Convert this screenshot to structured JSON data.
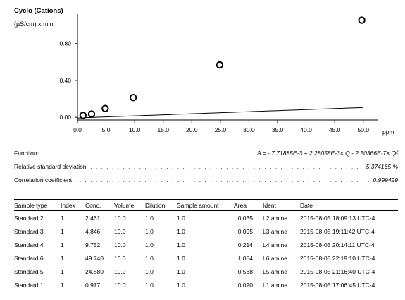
{
  "chart_data": {
    "type": "scatter",
    "title": "Cyclo (Cations)",
    "ylabel": "(µS/cm) x min",
    "xlabel": "ppm",
    "xlim": [
      0,
      52.5
    ],
    "ylim": [
      -0.03,
      1.12
    ],
    "xticks": [
      "0.0",
      "5.0",
      "10.0",
      "15.0",
      "20.0",
      "25.0",
      "30.0",
      "35.0",
      "40.0",
      "45.0",
      "50.0"
    ],
    "yticks": [
      "0.00",
      "0.40",
      "0.80"
    ],
    "points": [
      {
        "x": 0.977,
        "y": 0.02
      },
      {
        "x": 2.461,
        "y": 0.035
      },
      {
        "x": 4.846,
        "y": 0.095
      },
      {
        "x": 9.752,
        "y": 0.214
      },
      {
        "x": 24.88,
        "y": 0.568
      },
      {
        "x": 49.74,
        "y": 1.054
      }
    ],
    "fit": {
      "intercept": -0.00771885,
      "linear": 0.00228058,
      "quadratic": -2.50366e-07
    }
  },
  "info": {
    "function_label": "Function:",
    "function_value": "A = - 7.71885E-3 + 2.28058E-3× Q - 2.50366E-7× Q²",
    "rsd_label": "Relative standard deviation",
    "rsd_value": "5.374165 %",
    "corr_label": "Correlation coefficient",
    "corr_value": "0.999429"
  },
  "table": {
    "headers": {
      "sample_type": "Sample type",
      "index": "Index",
      "conc": "Conc.",
      "volume": "Volume",
      "dilution": "Dilution",
      "sample_amount": "Sample amount",
      "area": "Area",
      "ident": "Ident",
      "date": "Date"
    },
    "rows": [
      {
        "sample_type": "Standard 2",
        "index": "1",
        "conc": "2.461",
        "volume": "10.0",
        "dilution": "1.0",
        "sample_amount": "1.0",
        "area": "0.035",
        "ident": "L2 amine",
        "date": "2015-08-05 18:09:13 UTC-4"
      },
      {
        "sample_type": "Standard 3",
        "index": "1",
        "conc": "4.846",
        "volume": "10.0",
        "dilution": "1.0",
        "sample_amount": "1.0",
        "area": "0.095",
        "ident": "L3 amine",
        "date": "2015-08-05 19:11:42 UTC-4"
      },
      {
        "sample_type": "Standard 4",
        "index": "1",
        "conc": "9.752",
        "volume": "10.0",
        "dilution": "1.0",
        "sample_amount": "1.0",
        "area": "0.214",
        "ident": "L4 amine",
        "date": "2015-08-05 20:14:11 UTC-4"
      },
      {
        "sample_type": "Standard 6",
        "index": "1",
        "conc": "49.740",
        "volume": "10.0",
        "dilution": "1.0",
        "sample_amount": "1.0",
        "area": "1.054",
        "ident": "L6 amine",
        "date": "2015-08-05 22:19:10 UTC-4"
      },
      {
        "sample_type": "Standard 5",
        "index": "1",
        "conc": "24.880",
        "volume": "10.0",
        "dilution": "1.0",
        "sample_amount": "1.0",
        "area": "0.568",
        "ident": "L5 amine",
        "date": "2015-08-05 21:16:40 UTC-4"
      },
      {
        "sample_type": "Standard 1",
        "index": "1",
        "conc": "0.977",
        "volume": "10.0",
        "dilution": "1.0",
        "sample_amount": "1.0",
        "area": "0.020",
        "ident": "L1 amine",
        "date": "2015-08-05 17:06:45 UTC-4"
      }
    ]
  }
}
